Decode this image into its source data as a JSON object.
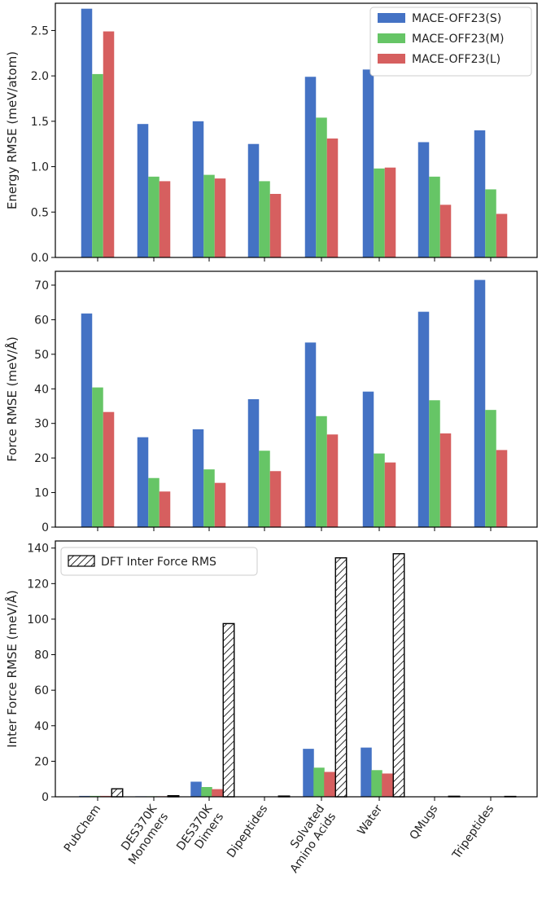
{
  "chart_data": [
    {
      "type": "bar",
      "panel": "top",
      "ylabel": "Energy RMSE (meV/atom)",
      "ylim": [
        0,
        2.8
      ],
      "yticks": [
        "0.0",
        "0.5",
        "1.0",
        "1.5",
        "2.0",
        "2.5"
      ],
      "ytick_values": [
        0,
        0.5,
        1.0,
        1.5,
        2.0,
        2.5
      ],
      "legend_position": "top-right",
      "series": [
        {
          "name": "MACE-OFF23(S)",
          "color": "#4472c4",
          "values": [
            2.74,
            1.47,
            1.5,
            1.25,
            1.99,
            2.07,
            1.27,
            1.4
          ]
        },
        {
          "name": "MACE-OFF23(M)",
          "color": "#66c566",
          "values": [
            2.02,
            0.89,
            0.91,
            0.84,
            1.54,
            0.98,
            0.89,
            0.75
          ]
        },
        {
          "name": "MACE-OFF23(L)",
          "color": "#d65f5f",
          "values": [
            2.49,
            0.84,
            0.87,
            0.7,
            1.31,
            0.99,
            0.58,
            0.48
          ]
        }
      ]
    },
    {
      "type": "bar",
      "panel": "middle",
      "ylabel": "Force RMSE (meV/Å)",
      "ylim": [
        0,
        74
      ],
      "yticks": [
        "0",
        "10",
        "20",
        "30",
        "40",
        "50",
        "60",
        "70"
      ],
      "ytick_values": [
        0,
        10,
        20,
        30,
        40,
        50,
        60,
        70
      ],
      "series": [
        {
          "name": "MACE-OFF23(S)",
          "color": "#4472c4",
          "values": [
            61.8,
            26.0,
            28.3,
            37.0,
            53.4,
            39.2,
            62.3,
            71.5
          ]
        },
        {
          "name": "MACE-OFF23(M)",
          "color": "#66c566",
          "values": [
            40.4,
            14.2,
            16.7,
            22.1,
            32.1,
            21.3,
            36.7,
            33.9
          ]
        },
        {
          "name": "MACE-OFF23(L)",
          "color": "#d65f5f",
          "values": [
            33.3,
            10.3,
            12.8,
            16.2,
            26.8,
            18.7,
            27.1,
            22.3
          ]
        }
      ]
    },
    {
      "type": "bar",
      "panel": "bottom",
      "ylabel": "Inter Force RMSE (meV/Å)",
      "ylim": [
        0,
        144
      ],
      "yticks": [
        "0",
        "20",
        "40",
        "60",
        "80",
        "100",
        "120",
        "140"
      ],
      "ytick_values": [
        0,
        20,
        40,
        60,
        80,
        100,
        120,
        140
      ],
      "legend_position": "top-left",
      "series": [
        {
          "name": "MACE-OFF23(S)",
          "color": "#4472c4",
          "values": [
            0.5,
            0.3,
            8.5,
            0.0,
            27.0,
            27.7,
            0.0,
            0.0
          ]
        },
        {
          "name": "MACE-OFF23(M)",
          "color": "#66c566",
          "values": [
            0.5,
            0.3,
            5.5,
            0.0,
            16.4,
            15.0,
            0.0,
            0.0
          ]
        },
        {
          "name": "MACE-OFF23(L)",
          "color": "#d65f5f",
          "values": [
            0.5,
            0.3,
            4.3,
            0.0,
            14.0,
            13.1,
            0.0,
            0.0
          ]
        },
        {
          "name": "DFT Inter Force RMS",
          "color": "#ffffff",
          "hatch": true,
          "values": [
            4.5,
            0.6,
            97.5,
            0.4,
            134.5,
            136.8,
            0.3,
            0.2
          ]
        }
      ]
    }
  ],
  "categories": [
    [
      "PubChem"
    ],
    [
      "DES370K",
      "Monomers"
    ],
    [
      "DES370K",
      "Dimers"
    ],
    [
      "Dipeptides"
    ],
    [
      "Solvated",
      "Amino Acids"
    ],
    [
      "Water"
    ],
    [
      "QMugs"
    ],
    [
      "Tripeptides"
    ]
  ]
}
